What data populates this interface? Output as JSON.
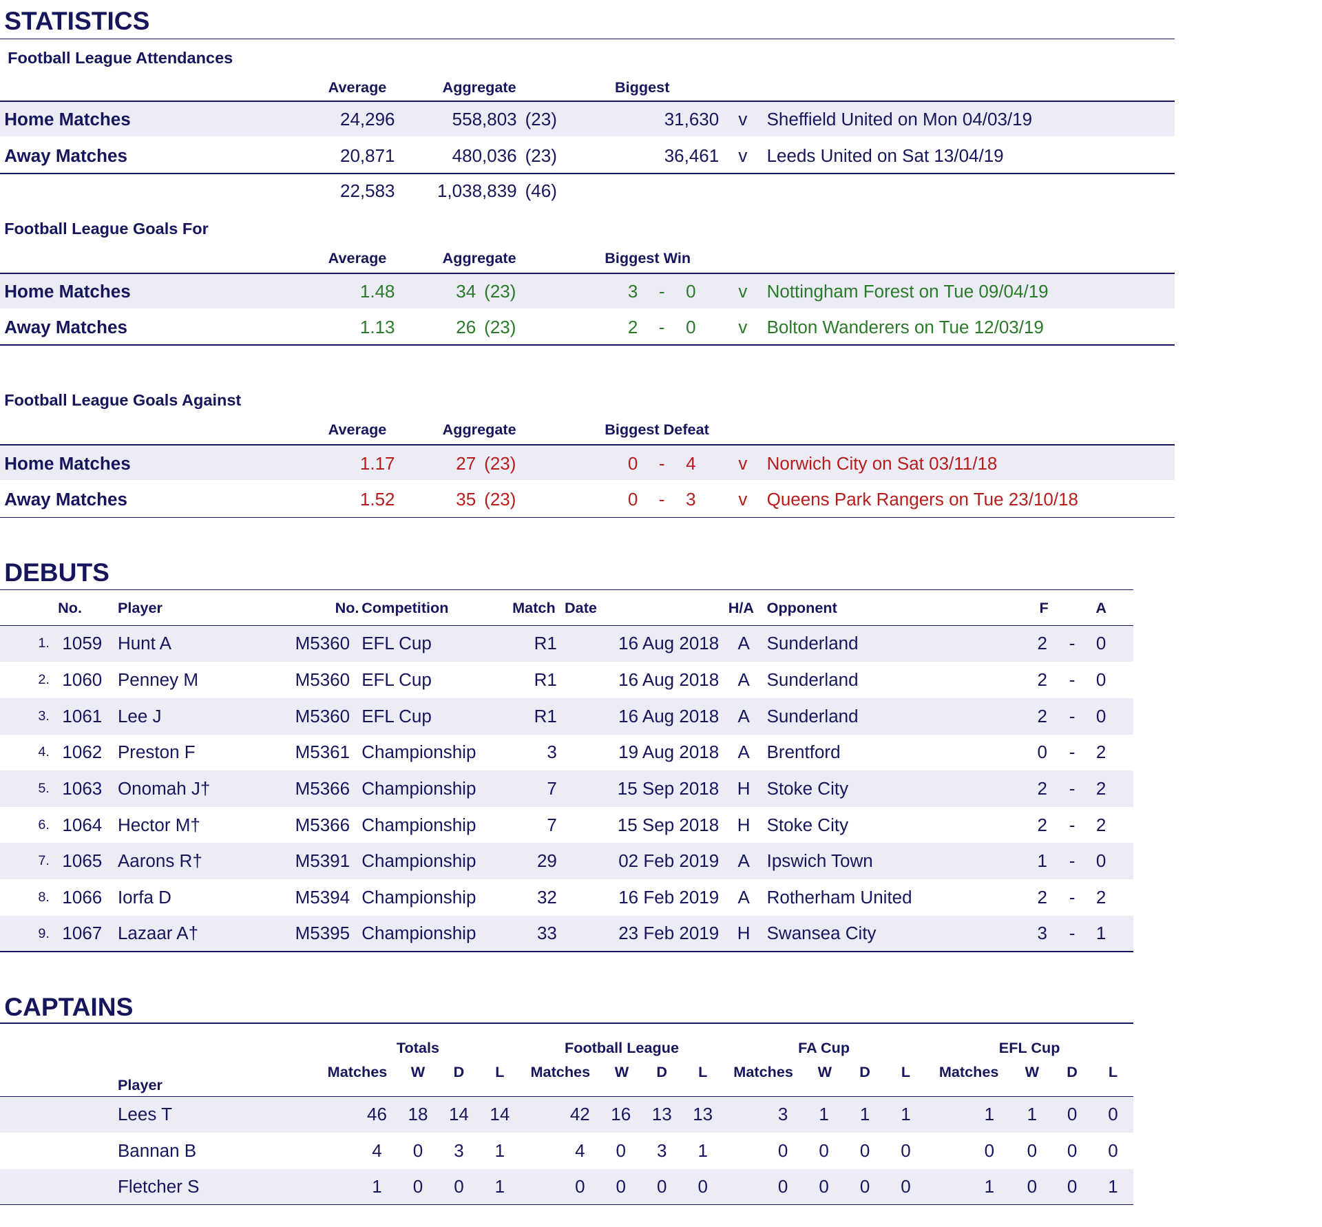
{
  "statistics": {
    "title": "STATISTICS",
    "attendances": {
      "title": "Football League Attendances",
      "headers": [
        "Average",
        "Aggregate",
        "Biggest"
      ],
      "rows": [
        {
          "label": "Home Matches",
          "average": "24,296",
          "aggregate": "558,803",
          "count": "(23)",
          "biggest": "31,630",
          "versus": "v",
          "detail": "Sheffield United on Mon 04/03/19"
        },
        {
          "label": "Away Matches",
          "average": "20,871",
          "aggregate": "480,036",
          "count": "(23)",
          "biggest": "36,461",
          "versus": "v",
          "detail": "Leeds United on Sat 13/04/19"
        }
      ],
      "total": {
        "average": "22,583",
        "aggregate": "1,038,839",
        "count": "(46)"
      }
    },
    "goals_for": {
      "title": "Football League Goals For",
      "headers": [
        "Average",
        "Aggregate",
        "Biggest Win"
      ],
      "rows": [
        {
          "label": "Home Matches",
          "average": "1.48",
          "aggregate": "34",
          "count": "(23)",
          "score_for": "3",
          "dash": "-",
          "score_against": "0",
          "versus": "v",
          "detail": "Nottingham Forest on Tue 09/04/19"
        },
        {
          "label": "Away Matches",
          "average": "1.13",
          "aggregate": "26",
          "count": "(23)",
          "score_for": "2",
          "dash": "-",
          "score_against": "0",
          "versus": "v",
          "detail": "Bolton Wanderers on Tue 12/03/19"
        }
      ]
    },
    "goals_against": {
      "title": "Football League Goals Against",
      "headers": [
        "Average",
        "Aggregate",
        "Biggest Defeat"
      ],
      "rows": [
        {
          "label": "Home Matches",
          "average": "1.17",
          "aggregate": "27",
          "count": "(23)",
          "score_for": "0",
          "dash": "-",
          "score_against": "4",
          "versus": "v",
          "detail": "Norwich City on Sat 03/11/18"
        },
        {
          "label": "Away Matches",
          "average": "1.52",
          "aggregate": "35",
          "count": "(23)",
          "score_for": "0",
          "dash": "-",
          "score_against": "3",
          "versus": "v",
          "detail": "Queens Park Rangers on Tue 23/10/18"
        }
      ]
    }
  },
  "debuts": {
    "title": "DEBUTS",
    "headers": [
      "No.",
      "Player",
      "No.",
      "Competition",
      "Match",
      "Date",
      "H/A",
      "Opponent",
      "F",
      "A"
    ],
    "rows": [
      [
        "1.",
        "1059",
        "Hunt A",
        "M5360",
        "EFL Cup",
        "R1",
        "16 Aug 2018",
        "A",
        "Sunderland",
        "2",
        "-",
        "0"
      ],
      [
        "2.",
        "1060",
        "Penney M",
        "M5360",
        "EFL Cup",
        "R1",
        "16 Aug 2018",
        "A",
        "Sunderland",
        "2",
        "-",
        "0"
      ],
      [
        "3.",
        "1061",
        "Lee J",
        "M5360",
        "EFL Cup",
        "R1",
        "16 Aug 2018",
        "A",
        "Sunderland",
        "2",
        "-",
        "0"
      ],
      [
        "4.",
        "1062",
        "Preston F",
        "M5361",
        "Championship",
        "3",
        "19 Aug 2018",
        "A",
        "Brentford",
        "0",
        "-",
        "2"
      ],
      [
        "5.",
        "1063",
        "Onomah J†",
        "M5366",
        "Championship",
        "7",
        "15 Sep 2018",
        "H",
        "Stoke City",
        "2",
        "-",
        "2"
      ],
      [
        "6.",
        "1064",
        "Hector M†",
        "M5366",
        "Championship",
        "7",
        "15 Sep 2018",
        "H",
        "Stoke City",
        "2",
        "-",
        "2"
      ],
      [
        "7.",
        "1065",
        "Aarons R†",
        "M5391",
        "Championship",
        "29",
        "02 Feb 2019",
        "A",
        "Ipswich Town",
        "1",
        "-",
        "0"
      ],
      [
        "8.",
        "1066",
        "Iorfa D",
        "M5394",
        "Championship",
        "32",
        "16 Feb 2019",
        "A",
        "Rotherham United",
        "2",
        "-",
        "2"
      ],
      [
        "9.",
        "1067",
        "Lazaar A†",
        "M5395",
        "Championship",
        "33",
        "23 Feb 2019",
        "H",
        "Swansea City",
        "3",
        "-",
        "1"
      ]
    ]
  },
  "captains": {
    "title": "CAPTAINS",
    "player_header": "Player",
    "groups": [
      {
        "name": "Totals",
        "columns": [
          "Matches",
          "W",
          "D",
          "L"
        ]
      },
      {
        "name": "Football League",
        "columns": [
          "Matches",
          "W",
          "D",
          "L"
        ]
      },
      {
        "name": "FA Cup",
        "columns": [
          "Matches",
          "W",
          "D",
          "L"
        ]
      },
      {
        "name": "EFL Cup",
        "columns": [
          "Matches",
          "W",
          "D",
          "L"
        ]
      }
    ],
    "rows": [
      {
        "player": "Lees T",
        "values": [
          46,
          18,
          14,
          14,
          42,
          16,
          13,
          13,
          3,
          1,
          1,
          1,
          1,
          1,
          0,
          0
        ]
      },
      {
        "player": "Bannan B",
        "values": [
          4,
          0,
          3,
          1,
          4,
          0,
          3,
          1,
          0,
          0,
          0,
          0,
          0,
          0,
          0,
          0
        ]
      },
      {
        "player": "Fletcher S",
        "values": [
          1,
          0,
          0,
          1,
          0,
          0,
          0,
          0,
          0,
          0,
          0,
          0,
          1,
          0,
          0,
          1
        ]
      }
    ]
  }
}
